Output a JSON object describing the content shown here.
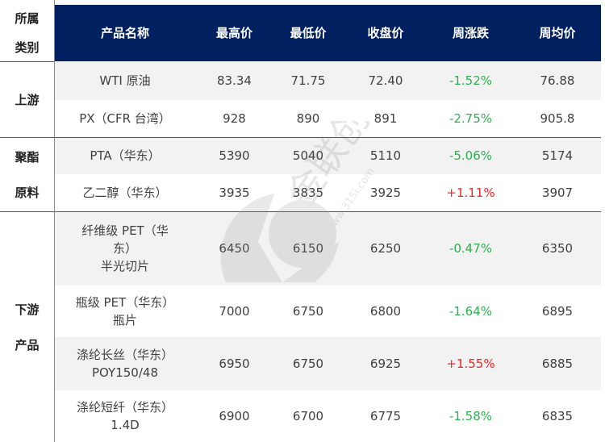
{
  "headers": {
    "category": "所属类别",
    "category_l1": "所属",
    "category_l2": "类别",
    "name": "产品名称",
    "high": "最高价",
    "low": "最低价",
    "close": "收盘价",
    "change": "周涨跌",
    "avg": "周均价"
  },
  "groups": [
    {
      "l1": "上游",
      "l2": ""
    },
    {
      "l1": "聚酯",
      "l2": "原料"
    },
    {
      "l1": "下游",
      "l2": "产品"
    }
  ],
  "rows": [
    {
      "name": "WTI 原油",
      "high": "83.34",
      "low": "71.75",
      "close": "72.40",
      "change": "-1.52%",
      "direction": "down",
      "avg": "76.88"
    },
    {
      "name": "PX（CFR 台湾）",
      "high": "928",
      "low": "890",
      "close": "891",
      "change": "-2.75%",
      "direction": "down",
      "avg": "905.8"
    },
    {
      "name": "PTA（华东）",
      "high": "5390",
      "low": "5040",
      "close": "5110",
      "change": "-5.06%",
      "direction": "down",
      "avg": "5174"
    },
    {
      "name": "乙二醇（华东）",
      "high": "3935",
      "low": "3835",
      "close": "3925",
      "change": "+1.11%",
      "direction": "up",
      "avg": "3907"
    },
    {
      "name": "纤维级 PET（华东）半光切片",
      "name_l1": "纤维级 PET（华",
      "name_l2": "东）",
      "name_l3": "半光切片",
      "high": "6450",
      "low": "6150",
      "close": "6250",
      "change": "-0.47%",
      "direction": "down",
      "avg": "6350"
    },
    {
      "name": "瓶级 PET（华东）瓶片",
      "name_l1": "瓶级 PET（华东）",
      "name_l2": "瓶片",
      "high": "7000",
      "low": "6750",
      "close": "6800",
      "change": "-1.64%",
      "direction": "down",
      "avg": "6895"
    },
    {
      "name": "涤纶长丝（华东）POY150/48",
      "name_l1": "涤纶长丝（华东）",
      "name_l2": "POY150/48",
      "high": "6950",
      "low": "6750",
      "close": "6925",
      "change": "+1.55%",
      "direction": "up",
      "avg": "6885"
    },
    {
      "name": "涤纶短纤（华东）1.4D",
      "name_l1": "涤纶短纤（华东）",
      "name_l2": "1.4D",
      "high": "6900",
      "low": "6700",
      "close": "6775",
      "change": "-1.58%",
      "direction": "down",
      "avg": "6835"
    }
  ],
  "watermark": {
    "text": "金联创®",
    "url": "www.315i.com"
  },
  "colors": {
    "header_bg": "#002060",
    "up": "#ff2020",
    "down": "#2eb050",
    "stripe": "#f2f2f2"
  }
}
